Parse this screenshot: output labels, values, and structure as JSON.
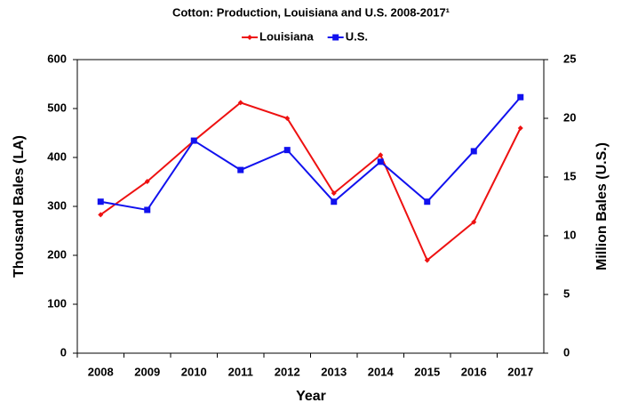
{
  "chart_data": {
    "type": "line",
    "title": "Cotton: Production, Louisiana and U.S. 2008-2017¹",
    "x_label": "Year",
    "y_label": "Thousand Bales (LA)",
    "y2_label": "Million Bales (U.S.)",
    "categories": [
      "2008",
      "2009",
      "2010",
      "2011",
      "2012",
      "2013",
      "2014",
      "2015",
      "2016",
      "2017"
    ],
    "series": [
      {
        "name": "Louisiana",
        "color": "#ee1111",
        "marker": "diamond",
        "values": [
          283,
          351,
          434,
          512,
          480,
          327,
          405,
          190,
          268,
          460
        ]
      },
      {
        "name": "U.S.",
        "color": "#1111ee",
        "marker": "square",
        "axis": "y2",
        "values": [
          12.9,
          12.2,
          18.1,
          15.6,
          17.3,
          12.9,
          16.3,
          12.9,
          17.2,
          21.8
        ]
      }
    ],
    "ylim": [
      0,
      600
    ],
    "yticks": [
      0,
      100,
      200,
      300,
      400,
      500,
      600
    ],
    "y2lim": [
      0,
      25
    ],
    "y2ticks": [
      0,
      5,
      10,
      15,
      20,
      25
    ],
    "grid": false,
    "legend": "top"
  }
}
